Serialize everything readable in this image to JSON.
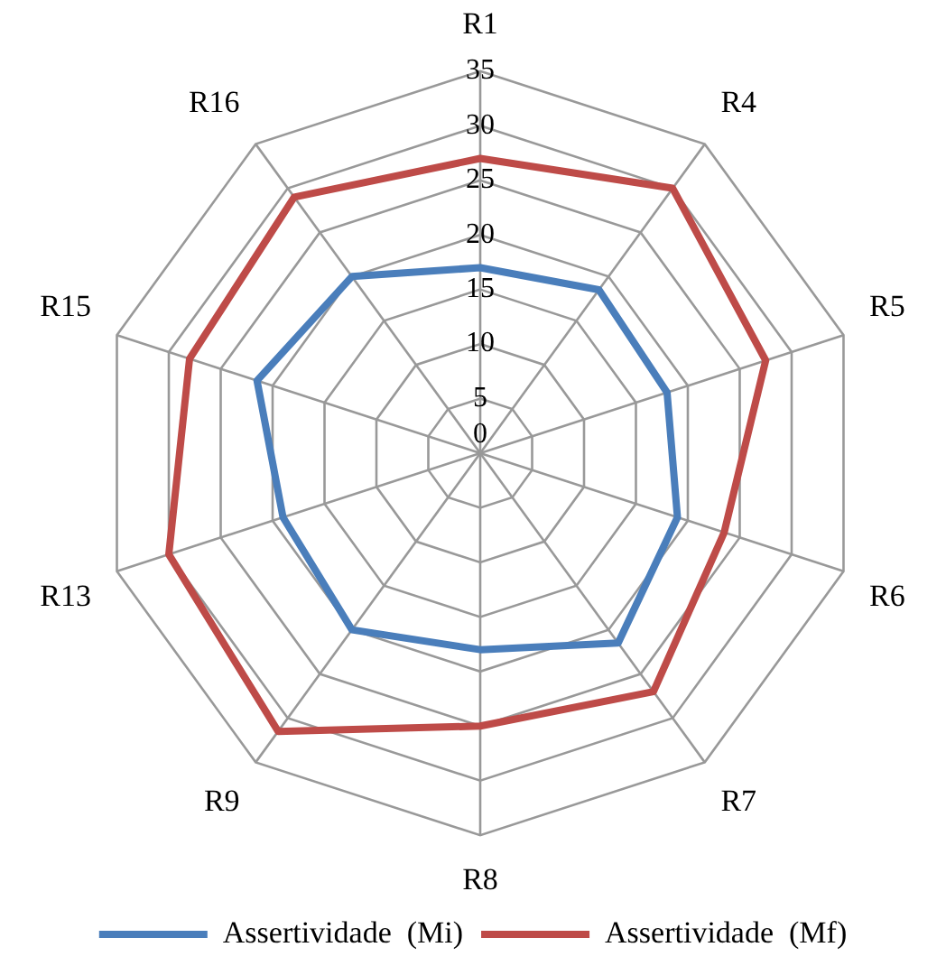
{
  "chart_data": {
    "type": "radar",
    "categories": [
      "R1",
      "R4",
      "R5",
      "R6",
      "R7",
      "R8",
      "R9",
      "R13",
      "R15",
      "R16"
    ],
    "series": [
      {
        "name": "Assertividade  (Mi)",
        "color": "#4a7ebb",
        "values": [
          17,
          18.5,
          18,
          19,
          21.5,
          18,
          20,
          19,
          21.5,
          20
        ]
      },
      {
        "name": "Assertividade  (Mf)",
        "color": "#be4b48",
        "values": [
          27,
          30,
          27.5,
          23.5,
          27,
          25,
          31.5,
          30,
          28,
          29
        ]
      }
    ],
    "ylim": [
      0,
      35
    ],
    "yticks": [
      0,
      5,
      10,
      15,
      20,
      25,
      30,
      35
    ],
    "grid": true,
    "legend": "bottom",
    "marker": "none"
  }
}
